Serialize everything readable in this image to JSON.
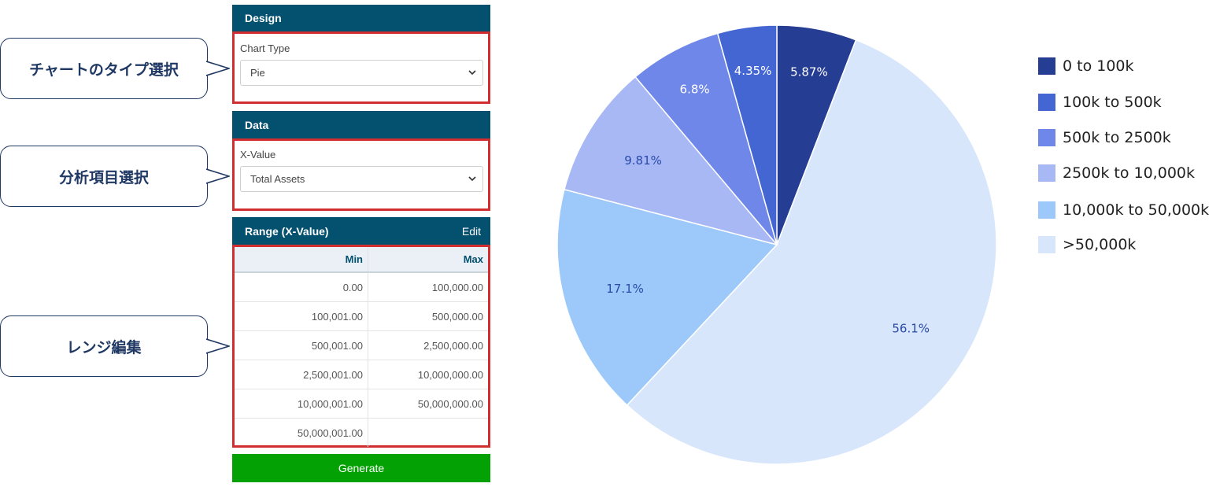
{
  "callouts": {
    "chart_type": "チャートのタイプ選択",
    "analysis_item": "分析項目選択",
    "range_edit": "レンジ編集"
  },
  "design_panel": {
    "header": "Design",
    "field_label": "Chart Type",
    "selected": "Pie"
  },
  "data_panel": {
    "header": "Data",
    "field_label": "X-Value",
    "selected": "Total Assets"
  },
  "range_panel": {
    "header": "Range (X-Value)",
    "edit_label": "Edit",
    "columns": [
      "Min",
      "Max"
    ],
    "rows": [
      [
        "0.00",
        "100,000.00"
      ],
      [
        "100,001.00",
        "500,000.00"
      ],
      [
        "500,001.00",
        "2,500,000.00"
      ],
      [
        "2,500,001.00",
        "10,000,000.00"
      ],
      [
        "10,000,001.00",
        "50,000,000.00"
      ],
      [
        "50,000,001.00",
        ""
      ]
    ]
  },
  "generate_label": "Generate",
  "chart_data": {
    "type": "pie",
    "slices": [
      {
        "label": "0 to 100k",
        "value": 5.87,
        "display": "5.87%",
        "color": "#263d94",
        "label_color": "#ffffff"
      },
      {
        "label": ">50,000k",
        "value": 56.1,
        "display": "56.1%",
        "color": "#d8e6fc",
        "label_color": "#2a4aa8"
      },
      {
        "label": "10,000k to 50,000k",
        "value": 17.1,
        "display": "17.1%",
        "color": "#9dc8fa",
        "label_color": "#2a4aa8"
      },
      {
        "label": "2500k to 10,000k",
        "value": 9.81,
        "display": "9.81%",
        "color": "#a7b8f5",
        "label_color": "#2a4aa8"
      },
      {
        "label": "500k to 2500k",
        "value": 6.8,
        "display": "6.8%",
        "color": "#6f87e8",
        "label_color": "#ffffff"
      },
      {
        "label": "100k to 500k",
        "value": 4.35,
        "display": "4.35%",
        "color": "#4466d2",
        "label_color": "#ffffff"
      }
    ],
    "legend": [
      {
        "label": "0 to 100k",
        "color": "#263d94"
      },
      {
        "label": "100k to 500k",
        "color": "#4466d2"
      },
      {
        "label": "500k to 2500k",
        "color": "#6f87e8"
      },
      {
        "label": "2500k to 10,000k",
        "color": "#a7b8f5"
      },
      {
        "label": "10,000k to 50,000k",
        "color": "#9dc8fa"
      },
      {
        "label": ">50,000k",
        "color": "#d8e6fc"
      }
    ],
    "legend_position": "right"
  }
}
